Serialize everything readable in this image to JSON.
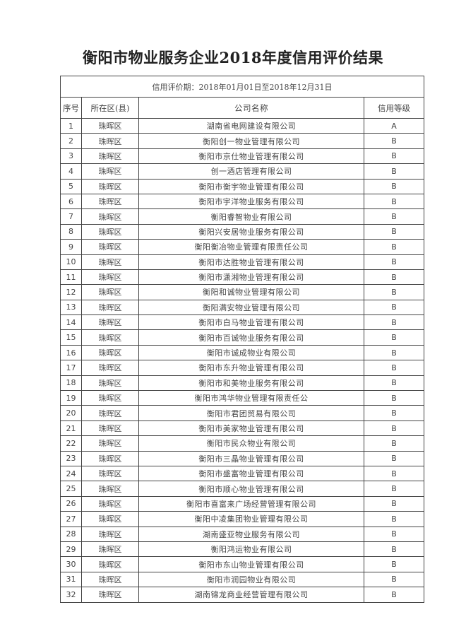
{
  "title": "衡阳市物业服务企业2018年度信用评价结果",
  "period": "信用评价期：2018年01月01日至2018年12月31日",
  "headers": [
    "序号",
    "所在区(县)",
    "公司名称",
    "信用等级"
  ],
  "rows": [
    [
      "1",
      "珠晖区",
      "湖南省电网建设有限公司",
      "A"
    ],
    [
      "2",
      "珠晖区",
      "衡阳创一物业管理有限公司",
      "B"
    ],
    [
      "3",
      "珠晖区",
      "衡阳市京仕物业管理有限公司",
      "B"
    ],
    [
      "4",
      "珠晖区",
      "创一酒店管理有限公司",
      "B"
    ],
    [
      "5",
      "珠晖区",
      "衡阳市衡宇物业管理有限公司",
      "B"
    ],
    [
      "6",
      "珠晖区",
      "衡阳市宇洋物业服务有限公司",
      "B"
    ],
    [
      "7",
      "珠晖区",
      "衡阳睿智物业有限公司",
      "B"
    ],
    [
      "8",
      "珠晖区",
      "衡阳兴安居物业服务有限公司",
      "B"
    ],
    [
      "9",
      "珠晖区",
      "衡阳衡冶物业管理有限责任公司",
      "B"
    ],
    [
      "10",
      "珠晖区",
      "衡阳市达胜物业管理有限公司",
      "B"
    ],
    [
      "11",
      "珠晖区",
      "衡阳市潇湘物业管理有限公司",
      "B"
    ],
    [
      "12",
      "珠晖区",
      "衡阳和诚物业管理有限公司",
      "B"
    ],
    [
      "13",
      "珠晖区",
      "衡阳满安物业管理有限公司",
      "B"
    ],
    [
      "14",
      "珠晖区",
      "衡阳市白马物业管理有限公司",
      "B"
    ],
    [
      "15",
      "珠晖区",
      "衡阳市百诚物业服务有限公司",
      "B"
    ],
    [
      "16",
      "珠晖区",
      "衡阳市诚成物业有限公司",
      "B"
    ],
    [
      "17",
      "珠晖区",
      "衡阳市东升物业管理有限公司",
      "B"
    ],
    [
      "18",
      "珠晖区",
      "衡阳市和美物业服务有限公司",
      "B"
    ],
    [
      "19",
      "珠晖区",
      "衡阳市鸿华物业管理有限责任公",
      "B"
    ],
    [
      "20",
      "珠晖区",
      "衡阳市君团贸易有限公司",
      "B"
    ],
    [
      "21",
      "珠晖区",
      "衡阳市美家物业管理有限公司",
      "B"
    ],
    [
      "22",
      "珠晖区",
      "衡阳市民众物业有限公司",
      "B"
    ],
    [
      "23",
      "珠晖区",
      "衡阳市三晶物业管理有限公司",
      "B"
    ],
    [
      "24",
      "珠晖区",
      "衡阳市盛富物业管理有限公司",
      "B"
    ],
    [
      "25",
      "珠晖区",
      "衡阳市顺心物业管理有限公司",
      "B"
    ],
    [
      "26",
      "珠晖区",
      "衡阳市喜富来广场经营管理有限公司",
      "B"
    ],
    [
      "27",
      "珠晖区",
      "衡阳中凌集团物业管理有限公司",
      "B"
    ],
    [
      "28",
      "珠晖区",
      "湖南盛亚物业服务有限公司",
      "B"
    ],
    [
      "29",
      "珠晖区",
      "衡阳鸿运物业有限公司",
      "B"
    ],
    [
      "30",
      "珠晖区",
      "衡阳市东山物业管理有限公司",
      "B"
    ],
    [
      "31",
      "珠晖区",
      "衡阳市润园物业有限公司",
      "B"
    ],
    [
      "32",
      "珠晖区",
      "湖南锦龙商业经营管理有限公司",
      "B"
    ]
  ]
}
